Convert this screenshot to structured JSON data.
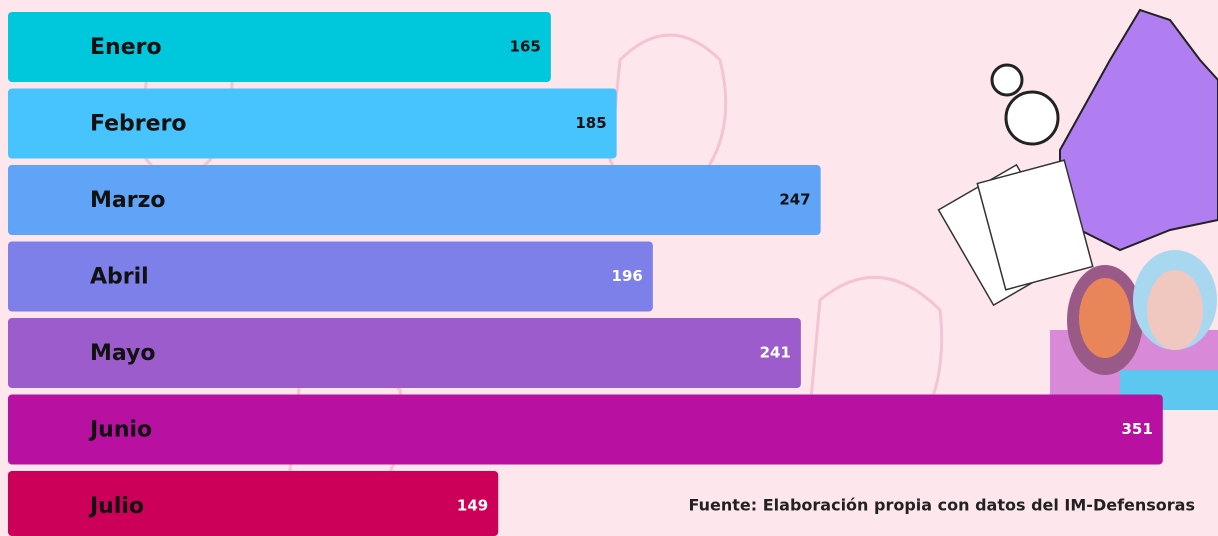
{
  "chart_data": {
    "type": "hbar",
    "categories": [
      "Enero",
      "Febrero",
      "Marzo",
      "Abril",
      "Mayo",
      "Junio",
      "Julio"
    ],
    "values": [
      165,
      185,
      247,
      196,
      241,
      351,
      149
    ],
    "colors": [
      "#00c8dc",
      "#48c4fc",
      "#60a4f8",
      "#7c80e8",
      "#9c5ccc",
      "#b810a0",
      "#cc0058"
    ],
    "value_label_colors": [
      "#111111",
      "#111111",
      "#111111",
      "#ffffff",
      "#ffffff",
      "#ffffff",
      "#ffffff"
    ],
    "source": "Fuente: Elaboración propia con datos del IM-Defensoras"
  }
}
